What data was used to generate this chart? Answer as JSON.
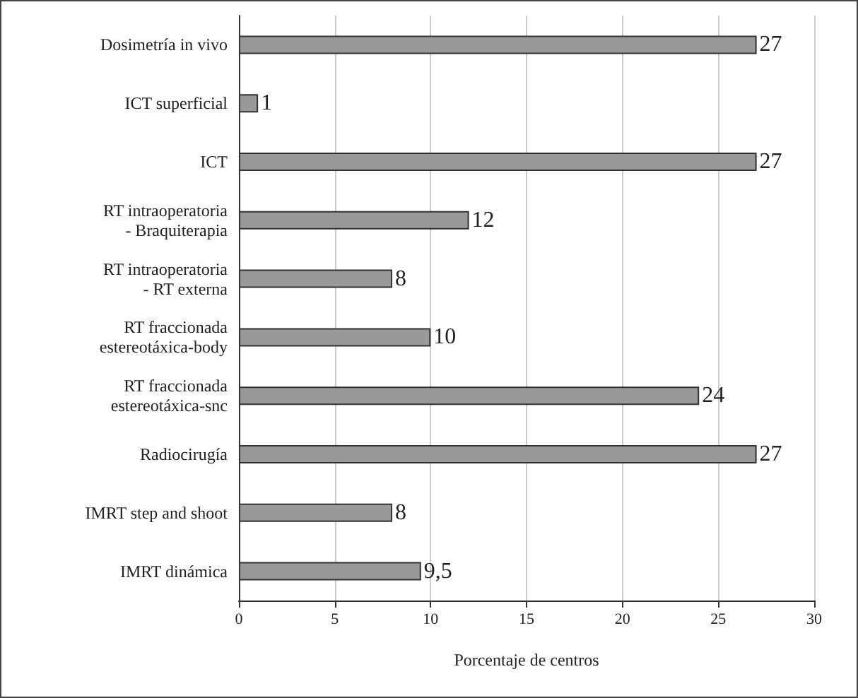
{
  "chart_data": {
    "type": "bar",
    "orientation": "horizontal",
    "xlabel": "Porcentaje de centros",
    "categories": [
      "Dosimetría in vivo",
      "ICT superficial",
      "ICT",
      "RT intraoperatoria\n- Braquiterapia",
      "RT intraoperatoria\n- RT externa",
      "RT fraccionada\nestereotáxica-body",
      "RT fraccionada\nestereotáxica-snc",
      "Radiocirugía",
      "IMRT step and shoot",
      "IMRT dinámica"
    ],
    "values": [
      27,
      1,
      27,
      12,
      8,
      10,
      24,
      27,
      8,
      9.5
    ],
    "value_labels": [
      "27",
      "1",
      "27",
      "12",
      "8",
      "10",
      "24",
      "27",
      "8",
      "9,5"
    ],
    "color": "#999999",
    "xlim": [
      0,
      30
    ],
    "xticks": [
      0,
      5,
      10,
      15,
      20,
      25,
      30
    ],
    "grid": "x"
  }
}
